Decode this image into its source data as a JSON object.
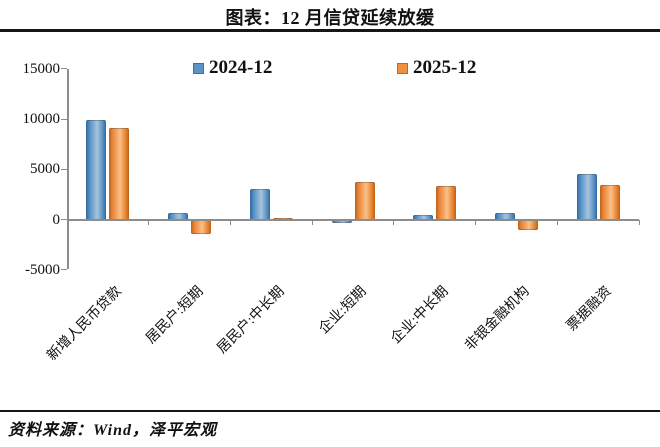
{
  "title": "图表：12 月信贷延续放缓",
  "source": "资料来源：Wind，泽平宏观",
  "chart_data": {
    "type": "bar",
    "title": "图表：12 月信贷延续放缓",
    "categories": [
      "新增人民币贷款",
      "居民户:短期",
      "居民户:中长期",
      "企业:短期",
      "企业:中长期",
      "非银金融机构",
      "票据融资"
    ],
    "series": [
      {
        "name": "2024-12",
        "color": "#5b93c6",
        "values": [
          9900,
          600,
          3000,
          -150,
          400,
          600,
          4500
        ]
      },
      {
        "name": "2025-12",
        "color": "#f0913e",
        "values": [
          9100,
          -1300,
          100,
          3700,
          3300,
          -900,
          3400
        ]
      }
    ],
    "xlabel": "",
    "ylabel": "",
    "ylim": [
      -5000,
      15000
    ],
    "y_ticks": [
      15000,
      10000,
      5000,
      0,
      -5000
    ],
    "legend_position": "top-center",
    "grid": false,
    "axis_color": "#8c8c8c"
  }
}
